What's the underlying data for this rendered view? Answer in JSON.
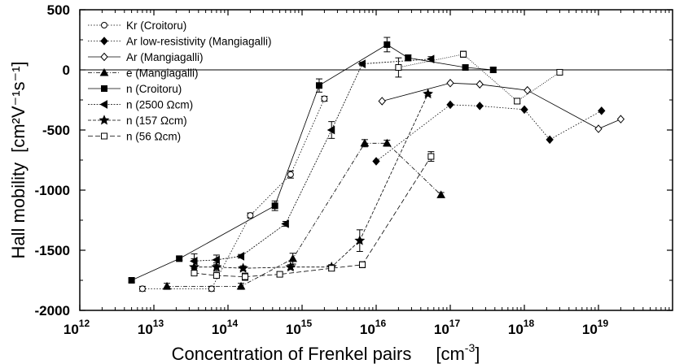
{
  "chart_data": {
    "type": "scatter",
    "xlabel": "Concentration of Frenkel pairs",
    "xunit_base": "[cm",
    "xunit_sup": "-3",
    "xunit_close": "]",
    "ylabel": "Hall mobility",
    "yunit": "[cm²V⁻¹s⁻¹]",
    "x_scale": "log",
    "xlim": [
      1000000000000.0,
      1e+20
    ],
    "ylim": [
      -2000,
      500
    ],
    "x_ticks": [
      {
        "base": "10",
        "exp": "12"
      },
      {
        "base": "10",
        "exp": "13"
      },
      {
        "base": "10",
        "exp": "14"
      },
      {
        "base": "10",
        "exp": "15"
      },
      {
        "base": "10",
        "exp": "16"
      },
      {
        "base": "10",
        "exp": "17"
      },
      {
        "base": "10",
        "exp": "18"
      },
      {
        "base": "10",
        "exp": "19"
      }
    ],
    "y_ticks": [
      "500",
      "0",
      "-500",
      "-1000",
      "-1500",
      "-2000"
    ],
    "zero_line": true,
    "legend_position": "top-left",
    "series": [
      {
        "name": "Kr (Croitoru)",
        "marker": "circle-open",
        "dash": "1.5,2",
        "x": [
          7000000000000.0,
          60000000000000.0,
          200000000000000.0,
          700000000000000.0,
          2000000000000000.0
        ],
        "y": [
          -1820,
          -1820,
          -1210,
          -870,
          -240
        ],
        "err": [
          20,
          20,
          20,
          30,
          20
        ]
      },
      {
        "name": "Ar low-resistivity (Mangiagalli)",
        "marker": "diamond-filled",
        "dash": "1.5,2",
        "x": [
          1e+16,
          1e+17,
          2.5e+17,
          1e+18,
          2.2e+18,
          1.1e+19
        ],
        "y": [
          -760,
          -290,
          -300,
          -330,
          -580,
          -340
        ],
        "err": [
          0,
          0,
          0,
          0,
          0,
          0
        ]
      },
      {
        "name": "Ar (Mangiagalli)",
        "marker": "diamond-open",
        "dash": "none",
        "x": [
          1.2e+16,
          1e+17,
          2.5e+17,
          1.1e+18,
          1e+19,
          2e+19
        ],
        "y": [
          -260,
          -110,
          -120,
          -170,
          -490,
          -410
        ],
        "err": [
          0,
          0,
          0,
          0,
          0,
          0
        ]
      },
      {
        "name": "e (Mangiagalli)",
        "marker": "triangle-filled",
        "dash": "5,2,1,2",
        "x": [
          15000000000000.0,
          150000000000000.0,
          750000000000000.0,
          7000000000000000.0,
          1.4e+16,
          7.5e+16
        ],
        "y": [
          -1800,
          -1800,
          -1570,
          -610,
          -610,
          -1040
        ],
        "err": [
          25,
          25,
          45,
          30,
          25,
          20
        ]
      },
      {
        "name": "n (Croitoru)",
        "marker": "square-filled",
        "dash": "none",
        "x": [
          5000000000000.0,
          22000000000000.0,
          430000000000000.0,
          1700000000000000.0,
          1.4e+16,
          2.7e+16,
          1.6e+17,
          3.8e+17
        ],
        "y": [
          -1750,
          -1570,
          -1130,
          -130,
          210,
          100,
          20,
          0
        ],
        "err": [
          15,
          15,
          40,
          55,
          60,
          25,
          20,
          20
        ]
      },
      {
        "name": "n (2500 Ωcm)",
        "marker": "triangle-left-filled",
        "dash": "2,1.5",
        "x": [
          35000000000000.0,
          70000000000000.0,
          150000000000000.0,
          600000000000000.0,
          2500000000000000.0,
          6500000000000000.0,
          5.5e+16
        ],
        "y": [
          -1590,
          -1580,
          -1550,
          -1280,
          -500,
          50,
          90
        ],
        "err": [
          60,
          40,
          15,
          20,
          70,
          15,
          20
        ]
      },
      {
        "name": "n (157 Ωcm)",
        "marker": "star-filled",
        "dash": "4,2",
        "x": [
          35000000000000.0,
          70000000000000.0,
          160000000000000.0,
          700000000000000.0,
          2500000000000000.0,
          6000000000000000.0,
          5e+16
        ],
        "y": [
          -1640,
          -1640,
          -1650,
          -1640,
          -1640,
          -1420,
          -200
        ],
        "err": [
          70,
          35,
          20,
          20,
          20,
          90,
          15
        ]
      },
      {
        "name": "n (56 Ωcm)",
        "marker": "square-open",
        "dash": "6,3",
        "x": [
          35000000000000.0,
          70000000000000.0,
          170000000000000.0,
          500000000000000.0,
          2500000000000000.0,
          6500000000000000.0,
          5.5e+16
        ],
        "y": [
          -1690,
          -1710,
          -1720,
          -1700,
          -1650,
          -1620,
          -720
        ],
        "err": [
          20,
          20,
          30,
          20,
          20,
          25,
          40
        ]
      }
    ],
    "extra_series": [
      {
        "marker": "square-open",
        "dash": "1,1.5",
        "x": [
          2e+16,
          1.5e+17,
          8e+17,
          3e+18
        ],
        "y": [
          20,
          130,
          -260,
          -20
        ],
        "err": [
          80,
          25,
          20,
          20
        ]
      }
    ]
  }
}
